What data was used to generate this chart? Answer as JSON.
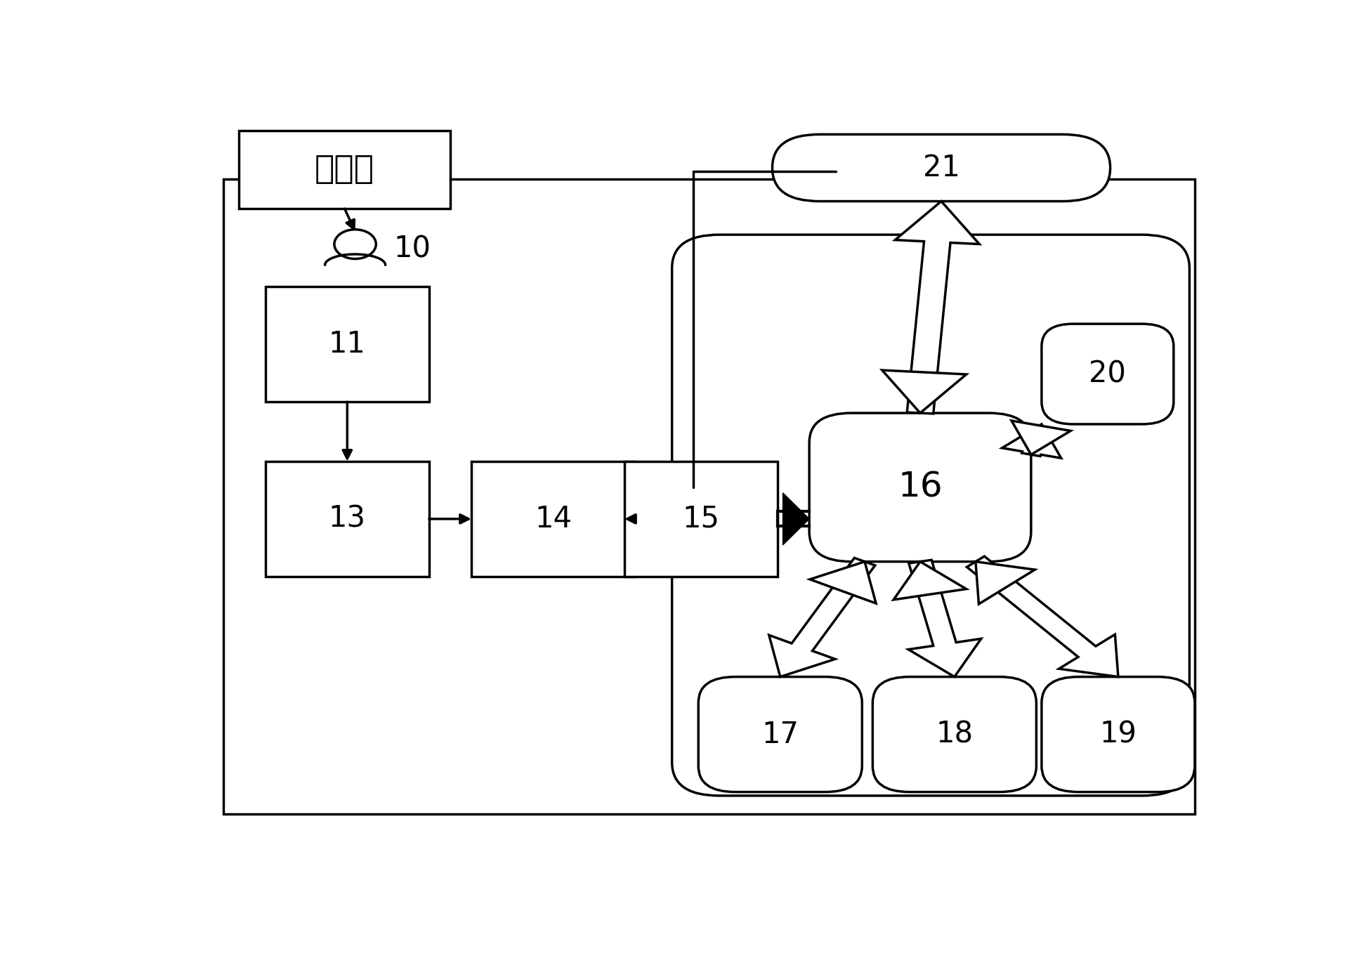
{
  "bg": "#ffffff",
  "ec": "#000000",
  "fw": 19.4,
  "fh": 13.74,
  "dpi": 100,
  "outer": [
    0.05,
    0.06,
    0.92,
    0.855
  ],
  "inner": [
    0.475,
    0.085,
    0.49,
    0.755
  ],
  "jgl": [
    0.065,
    0.875,
    0.2,
    0.105
  ],
  "b11": [
    0.09,
    0.615,
    0.155,
    0.155
  ],
  "b13": [
    0.09,
    0.38,
    0.155,
    0.155
  ],
  "b14": [
    0.285,
    0.38,
    0.155,
    0.155
  ],
  "b15": [
    0.43,
    0.38,
    0.145,
    0.155
  ],
  "b16": [
    0.605,
    0.4,
    0.21,
    0.2
  ],
  "b17": [
    0.5,
    0.09,
    0.155,
    0.155
  ],
  "b18": [
    0.665,
    0.09,
    0.155,
    0.155
  ],
  "b19": [
    0.825,
    0.09,
    0.145,
    0.155
  ],
  "b20": [
    0.825,
    0.585,
    0.125,
    0.135
  ],
  "b21": [
    0.57,
    0.885,
    0.32,
    0.09
  ],
  "pcx": 0.175,
  "pcy": 0.795,
  "psc": 0.052,
  "fs_cn": 34,
  "fs_num": 30,
  "fs_16": 36,
  "lw": 2.5,
  "lw_thick": 5.5,
  "small_arr": 22,
  "big_arr": 32
}
